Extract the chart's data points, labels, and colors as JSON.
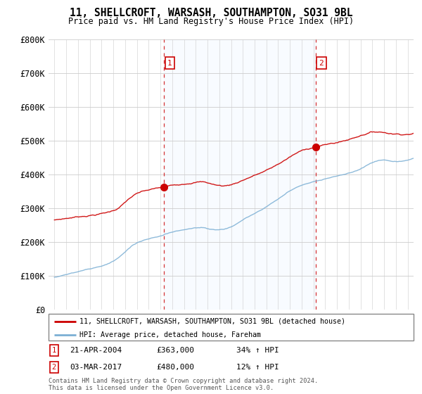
{
  "title": "11, SHELLCROFT, WARSASH, SOUTHAMPTON, SO31 9BL",
  "subtitle": "Price paid vs. HM Land Registry's House Price Index (HPI)",
  "legend_line1": "11, SHELLCROFT, WARSASH, SOUTHAMPTON, SO31 9BL (detached house)",
  "legend_line2": "HPI: Average price, detached house, Fareham",
  "sale1_label": "1",
  "sale1_date": "21-APR-2004",
  "sale1_price": 363000,
  "sale1_pct": "34% ↑ HPI",
  "sale2_label": "2",
  "sale2_date": "03-MAR-2017",
  "sale2_price": 480000,
  "sale2_pct": "12% ↑ HPI",
  "footer1": "Contains HM Land Registry data © Crown copyright and database right 2024.",
  "footer2": "This data is licensed under the Open Government Licence v3.0.",
  "red_color": "#cc0000",
  "blue_color": "#7bafd4",
  "fill_color": "#ddeeff",
  "dashed_color": "#cc0000",
  "ylim": [
    0,
    800000
  ],
  "yticks": [
    0,
    100000,
    200000,
    300000,
    400000,
    500000,
    600000,
    700000,
    800000
  ],
  "ytick_labels": [
    "£0",
    "£100K",
    "£200K",
    "£300K",
    "£400K",
    "£500K",
    "£600K",
    "£700K",
    "£800K"
  ],
  "sale1_x": 2004.3,
  "sale2_x": 2017.17,
  "xlim_left": 1994.5,
  "xlim_right": 2025.5
}
